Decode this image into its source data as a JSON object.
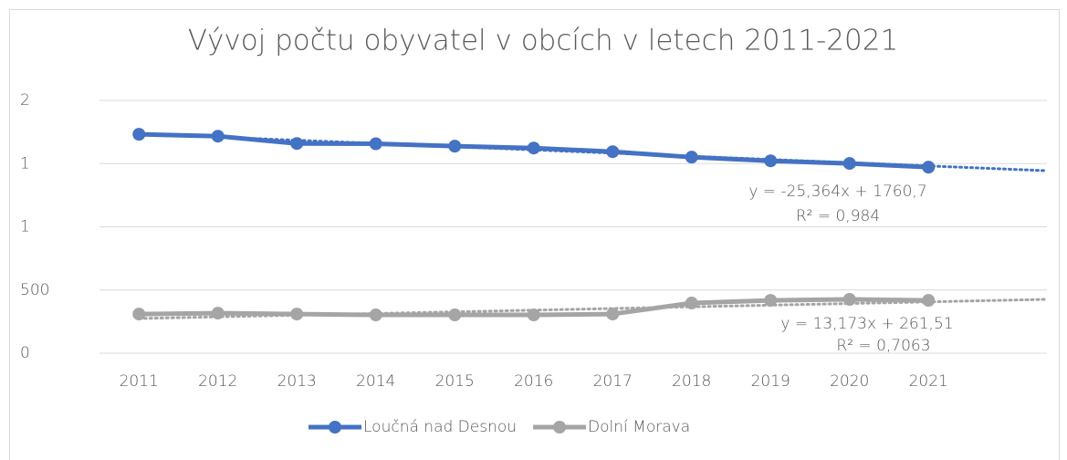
{
  "chart_data": {
    "type": "line",
    "title": "Vývoj počtu obyvatel v obcích v letech 2011-2021",
    "categories": [
      "2011",
      "2012",
      "2013",
      "2014",
      "2015",
      "2016",
      "2017",
      "2018",
      "2019",
      "2020",
      "2021",
      null
    ],
    "series": [
      {
        "name": "Loučná nad Desnou",
        "color": "#4472c4",
        "values": [
          1732,
          1717,
          1659,
          1657,
          1638,
          1623,
          1594,
          1551,
          1522,
          1501,
          1472,
          null
        ],
        "trendline": {
          "slope": -25.364,
          "intercept": 1760.7,
          "label": "y = -25,364x + 1760,7",
          "r2_label": "R² = 0,984"
        }
      },
      {
        "name": "Dolní Morava",
        "color": "#a5a5a5",
        "values": [
          310,
          317,
          310,
          303,
          303,
          303,
          310,
          397,
          418,
          426,
          418,
          null
        ],
        "trendline": {
          "slope": 13.173,
          "intercept": 261.51,
          "label": "y = 13,173x + 261,51",
          "r2_label": "R² = 0,7063"
        }
      }
    ],
    "ylim": [
      0,
      2000
    ],
    "yticks": [
      0,
      500,
      {
        "value": 1000,
        "label": "1"
      },
      {
        "value": 1500,
        "label": "1"
      },
      {
        "value": 2000,
        "label": "2"
      }
    ],
    "grid": true,
    "legend": "bottom"
  }
}
